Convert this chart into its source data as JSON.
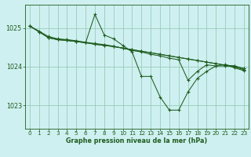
{
  "title": "Graphe pression niveau de la mer (hPa)",
  "background_color": "#cff0f0",
  "grid_color": "#99ccbb",
  "line_color": "#1e5c1e",
  "xlim": [
    -0.5,
    23.5
  ],
  "ylim": [
    1022.4,
    1025.6
  ],
  "yticks": [
    1023,
    1024,
    1025
  ],
  "xticks": [
    0,
    1,
    2,
    3,
    4,
    5,
    6,
    7,
    8,
    9,
    10,
    11,
    12,
    13,
    14,
    15,
    16,
    17,
    18,
    19,
    20,
    21,
    22,
    23
  ],
  "series": [
    {
      "x": [
        0,
        1,
        2,
        3,
        4,
        5,
        6,
        7,
        8,
        9,
        10,
        11,
        12,
        13,
        14,
        15,
        16,
        17,
        18,
        19,
        20,
        21,
        22,
        23
      ],
      "y": [
        1025.05,
        1024.92,
        1024.78,
        1024.72,
        1024.7,
        1024.67,
        1024.63,
        1024.6,
        1024.57,
        1024.53,
        1024.48,
        1024.44,
        1024.4,
        1024.36,
        1024.32,
        1024.28,
        1024.24,
        1024.2,
        1024.16,
        1024.12,
        1024.08,
        1024.04,
        1024.02,
        1023.95
      ]
    },
    {
      "x": [
        0,
        1,
        2,
        3,
        4,
        5,
        6,
        7,
        8,
        9,
        10,
        11,
        12,
        13,
        14,
        15,
        16,
        17,
        18,
        19,
        20,
        21,
        22,
        23
      ],
      "y": [
        1025.05,
        1024.9,
        1024.75,
        1024.7,
        1024.68,
        1024.65,
        1024.62,
        1025.35,
        1024.82,
        1024.72,
        1024.55,
        1024.38,
        1023.75,
        1023.75,
        1023.22,
        1022.88,
        1022.88,
        1023.35,
        1023.7,
        1023.88,
        1024.02,
        1024.06,
        1023.97,
        1023.9
      ]
    },
    {
      "x": [
        0,
        1,
        2,
        3,
        4,
        5,
        6,
        7,
        8,
        9,
        10,
        11,
        12,
        13,
        14,
        15,
        16,
        17,
        18,
        19,
        20,
        21,
        22,
        23
      ],
      "y": [
        1025.05,
        1024.9,
        1024.75,
        1024.7,
        1024.68,
        1024.65,
        1024.62,
        1024.58,
        1024.55,
        1024.52,
        1024.48,
        1024.42,
        1024.38,
        1024.32,
        1024.28,
        1024.22,
        1024.18,
        1023.65,
        1023.88,
        1024.05,
        1024.02,
        1024.02,
        1024.0,
        1023.92
      ]
    },
    {
      "x": [
        2,
        3,
        4,
        5,
        6,
        7,
        8,
        9,
        10,
        11,
        12,
        13,
        14,
        15,
        16,
        17,
        18,
        19,
        20,
        21,
        22,
        23
      ],
      "y": [
        1024.75,
        1024.7,
        1024.68,
        1024.65,
        1024.62,
        1024.58,
        1024.55,
        1024.52,
        1024.48,
        1024.44,
        1024.4,
        1024.36,
        1024.32,
        1024.28,
        1024.24,
        1024.2,
        1024.16,
        1024.12,
        1024.08,
        1024.04,
        1024.02,
        1023.95
      ]
    }
  ]
}
